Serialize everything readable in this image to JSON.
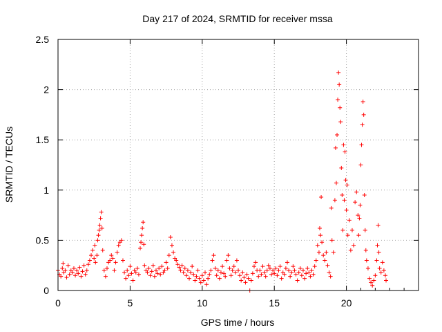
{
  "chart_data": {
    "type": "scatter",
    "title": "Day 217 of 2024, SRMTID for receiver mssa",
    "xlabel": "GPS time / hours",
    "ylabel": "SRMTID / TECUs",
    "xlim": [
      0,
      25
    ],
    "ylim": [
      0,
      2.5
    ],
    "x_ticks": [
      0,
      5,
      10,
      15,
      20
    ],
    "x_tick_labels": [
      "0",
      "5",
      "10",
      "15",
      "20"
    ],
    "y_ticks": [
      0,
      0.5,
      1,
      1.5,
      2,
      2.5
    ],
    "y_tick_labels": [
      "0",
      "0.5",
      "1",
      "1.5",
      "2",
      "2.5"
    ],
    "grid": true,
    "marker": "+",
    "color": "#ff0000",
    "series": [
      {
        "name": "SRMTID",
        "points": [
          [
            0.0,
            0.2
          ],
          [
            0.1,
            0.16
          ],
          [
            0.2,
            0.14
          ],
          [
            0.3,
            0.22
          ],
          [
            0.35,
            0.27
          ],
          [
            0.4,
            0.18
          ],
          [
            0.5,
            0.2
          ],
          [
            0.6,
            0.13
          ],
          [
            0.7,
            0.25
          ],
          [
            0.8,
            0.16
          ],
          [
            0.9,
            0.2
          ],
          [
            1.0,
            0.18
          ],
          [
            1.1,
            0.22
          ],
          [
            1.2,
            0.15
          ],
          [
            1.3,
            0.2
          ],
          [
            1.4,
            0.17
          ],
          [
            1.5,
            0.23
          ],
          [
            1.6,
            0.14
          ],
          [
            1.7,
            0.19
          ],
          [
            1.8,
            0.25
          ],
          [
            1.9,
            0.16
          ],
          [
            2.0,
            0.2
          ],
          [
            2.1,
            0.26
          ],
          [
            2.2,
            0.3
          ],
          [
            2.3,
            0.35
          ],
          [
            2.4,
            0.4
          ],
          [
            2.5,
            0.32
          ],
          [
            2.55,
            0.45
          ],
          [
            2.6,
            0.28
          ],
          [
            2.7,
            0.35
          ],
          [
            2.75,
            0.5
          ],
          [
            2.8,
            0.55
          ],
          [
            2.85,
            0.6
          ],
          [
            2.9,
            0.65
          ],
          [
            2.95,
            0.72
          ],
          [
            3.0,
            0.78
          ],
          [
            3.05,
            0.62
          ],
          [
            3.1,
            0.4
          ],
          [
            3.2,
            0.2
          ],
          [
            3.3,
            0.14
          ],
          [
            3.4,
            0.22
          ],
          [
            3.5,
            0.28
          ],
          [
            3.6,
            0.3
          ],
          [
            3.7,
            0.35
          ],
          [
            3.8,
            0.32
          ],
          [
            3.9,
            0.2
          ],
          [
            4.0,
            0.28
          ],
          [
            4.1,
            0.38
          ],
          [
            4.2,
            0.45
          ],
          [
            4.3,
            0.48
          ],
          [
            4.4,
            0.5
          ],
          [
            4.5,
            0.3
          ],
          [
            4.6,
            0.18
          ],
          [
            4.7,
            0.12
          ],
          [
            4.8,
            0.2
          ],
          [
            4.9,
            0.15
          ],
          [
            5.0,
            0.24
          ],
          [
            5.1,
            0.17
          ],
          [
            5.2,
            0.1
          ],
          [
            5.3,
            0.2
          ],
          [
            5.4,
            0.18
          ],
          [
            5.5,
            0.22
          ],
          [
            5.6,
            0.16
          ],
          [
            5.7,
            0.42
          ],
          [
            5.75,
            0.48
          ],
          [
            5.8,
            0.55
          ],
          [
            5.85,
            0.62
          ],
          [
            5.9,
            0.68
          ],
          [
            5.95,
            0.46
          ],
          [
            6.0,
            0.25
          ],
          [
            6.1,
            0.2
          ],
          [
            6.2,
            0.18
          ],
          [
            6.3,
            0.22
          ],
          [
            6.4,
            0.15
          ],
          [
            6.5,
            0.19
          ],
          [
            6.6,
            0.25
          ],
          [
            6.7,
            0.14
          ],
          [
            6.8,
            0.2
          ],
          [
            6.9,
            0.17
          ],
          [
            7.0,
            0.22
          ],
          [
            7.1,
            0.16
          ],
          [
            7.2,
            0.24
          ],
          [
            7.3,
            0.18
          ],
          [
            7.4,
            0.2
          ],
          [
            7.5,
            0.28
          ],
          [
            7.6,
            0.22
          ],
          [
            7.7,
            0.35
          ],
          [
            7.8,
            0.53
          ],
          [
            7.9,
            0.45
          ],
          [
            8.0,
            0.38
          ],
          [
            8.1,
            0.32
          ],
          [
            8.2,
            0.3
          ],
          [
            8.3,
            0.26
          ],
          [
            8.4,
            0.23
          ],
          [
            8.5,
            0.2
          ],
          [
            8.6,
            0.25
          ],
          [
            8.7,
            0.18
          ],
          [
            8.8,
            0.22
          ],
          [
            8.9,
            0.15
          ],
          [
            9.0,
            0.2
          ],
          [
            9.1,
            0.12
          ],
          [
            9.2,
            0.18
          ],
          [
            9.3,
            0.24
          ],
          [
            9.4,
            0.16
          ],
          [
            9.5,
            0.1
          ],
          [
            9.6,
            0.14
          ],
          [
            9.7,
            0.2
          ],
          [
            9.8,
            0.12
          ],
          [
            9.9,
            0.08
          ],
          [
            10.0,
            0.15
          ],
          [
            10.1,
            0.1
          ],
          [
            10.2,
            0.18
          ],
          [
            10.3,
            0.06
          ],
          [
            10.4,
            0.12
          ],
          [
            10.5,
            0.16
          ],
          [
            10.6,
            0.2
          ],
          [
            10.7,
            0.3
          ],
          [
            10.8,
            0.35
          ],
          [
            10.9,
            0.22
          ],
          [
            11.0,
            0.15
          ],
          [
            11.1,
            0.2
          ],
          [
            11.2,
            0.12
          ],
          [
            11.3,
            0.18
          ],
          [
            11.4,
            0.24
          ],
          [
            11.5,
            0.17
          ],
          [
            11.6,
            0.14
          ],
          [
            11.7,
            0.3
          ],
          [
            11.8,
            0.35
          ],
          [
            11.9,
            0.22
          ],
          [
            12.0,
            0.15
          ],
          [
            12.1,
            0.2
          ],
          [
            12.2,
            0.24
          ],
          [
            12.3,
            0.18
          ],
          [
            12.4,
            0.3
          ],
          [
            12.5,
            0.2
          ],
          [
            12.6,
            0.15
          ],
          [
            12.7,
            0.1
          ],
          [
            12.8,
            0.18
          ],
          [
            12.9,
            0.13
          ],
          [
            13.0,
            0.08
          ],
          [
            13.1,
            0.16
          ],
          [
            13.2,
            0.12
          ],
          [
            13.3,
            0.0
          ],
          [
            13.4,
            0.1
          ],
          [
            13.5,
            0.17
          ],
          [
            13.6,
            0.24
          ],
          [
            13.7,
            0.28
          ],
          [
            13.8,
            0.2
          ],
          [
            13.9,
            0.14
          ],
          [
            14.0,
            0.2
          ],
          [
            14.1,
            0.16
          ],
          [
            14.2,
            0.24
          ],
          [
            14.3,
            0.18
          ],
          [
            14.4,
            0.14
          ],
          [
            14.5,
            0.2
          ],
          [
            14.6,
            0.25
          ],
          [
            14.7,
            0.22
          ],
          [
            14.8,
            0.16
          ],
          [
            14.9,
            0.2
          ],
          [
            15.0,
            0.17
          ],
          [
            15.1,
            0.22
          ],
          [
            15.2,
            0.15
          ],
          [
            15.3,
            0.2
          ],
          [
            15.4,
            0.24
          ],
          [
            15.5,
            0.12
          ],
          [
            15.6,
            0.18
          ],
          [
            15.7,
            0.16
          ],
          [
            15.8,
            0.22
          ],
          [
            15.9,
            0.28
          ],
          [
            16.0,
            0.2
          ],
          [
            16.1,
            0.14
          ],
          [
            16.2,
            0.18
          ],
          [
            16.3,
            0.24
          ],
          [
            16.4,
            0.2
          ],
          [
            16.5,
            0.16
          ],
          [
            16.6,
            0.1
          ],
          [
            16.7,
            0.18
          ],
          [
            16.8,
            0.22
          ],
          [
            16.9,
            0.15
          ],
          [
            17.0,
            0.2
          ],
          [
            17.1,
            0.12
          ],
          [
            17.2,
            0.17
          ],
          [
            17.3,
            0.22
          ],
          [
            17.4,
            0.18
          ],
          [
            17.5,
            0.14
          ],
          [
            17.6,
            0.2
          ],
          [
            17.7,
            0.16
          ],
          [
            17.8,
            0.24
          ],
          [
            17.9,
            0.3
          ],
          [
            18.0,
            0.45
          ],
          [
            18.1,
            0.38
          ],
          [
            18.15,
            0.62
          ],
          [
            18.2,
            0.55
          ],
          [
            18.25,
            0.93
          ],
          [
            18.3,
            0.48
          ],
          [
            18.4,
            0.35
          ],
          [
            18.5,
            0.3
          ],
          [
            18.6,
            0.38
          ],
          [
            18.7,
            0.25
          ],
          [
            18.8,
            0.18
          ],
          [
            18.9,
            0.14
          ],
          [
            18.95,
            0.82
          ],
          [
            19.0,
            0.5
          ],
          [
            19.1,
            0.38
          ],
          [
            19.2,
            0.9
          ],
          [
            19.25,
            1.42
          ],
          [
            19.3,
            1.07
          ],
          [
            19.35,
            1.55
          ],
          [
            19.4,
            1.9
          ],
          [
            19.45,
            2.17
          ],
          [
            19.5,
            2.05
          ],
          [
            19.55,
            1.82
          ],
          [
            19.6,
            1.68
          ],
          [
            19.65,
            1.22
          ],
          [
            19.7,
            0.95
          ],
          [
            19.75,
            0.6
          ],
          [
            19.8,
            1.45
          ],
          [
            19.85,
            0.9
          ],
          [
            19.9,
            1.38
          ],
          [
            19.95,
            1.1
          ],
          [
            20.0,
            0.8
          ],
          [
            20.05,
            1.05
          ],
          [
            20.1,
            0.55
          ],
          [
            20.2,
            0.7
          ],
          [
            20.3,
            0.4
          ],
          [
            20.4,
            0.6
          ],
          [
            20.5,
            0.45
          ],
          [
            20.6,
            0.88
          ],
          [
            20.7,
            0.98
          ],
          [
            20.8,
            0.75
          ],
          [
            20.85,
            0.55
          ],
          [
            20.9,
            0.72
          ],
          [
            20.95,
            0.85
          ],
          [
            21.0,
            1.25
          ],
          [
            21.05,
            1.45
          ],
          [
            21.1,
            1.65
          ],
          [
            21.15,
            1.88
          ],
          [
            21.2,
            1.75
          ],
          [
            21.25,
            0.95
          ],
          [
            21.3,
            0.6
          ],
          [
            21.35,
            0.4
          ],
          [
            21.4,
            0.3
          ],
          [
            21.5,
            0.22
          ],
          [
            21.6,
            0.12
          ],
          [
            21.7,
            0.08
          ],
          [
            21.8,
            0.05
          ],
          [
            21.9,
            0.1
          ],
          [
            22.0,
            0.15
          ],
          [
            22.1,
            0.3
          ],
          [
            22.15,
            0.45
          ],
          [
            22.2,
            0.65
          ],
          [
            22.25,
            0.38
          ],
          [
            22.3,
            0.22
          ],
          [
            22.4,
            0.18
          ],
          [
            22.5,
            0.28
          ],
          [
            22.6,
            0.2
          ],
          [
            22.7,
            0.15
          ],
          [
            22.75,
            0.1
          ]
        ]
      }
    ]
  }
}
